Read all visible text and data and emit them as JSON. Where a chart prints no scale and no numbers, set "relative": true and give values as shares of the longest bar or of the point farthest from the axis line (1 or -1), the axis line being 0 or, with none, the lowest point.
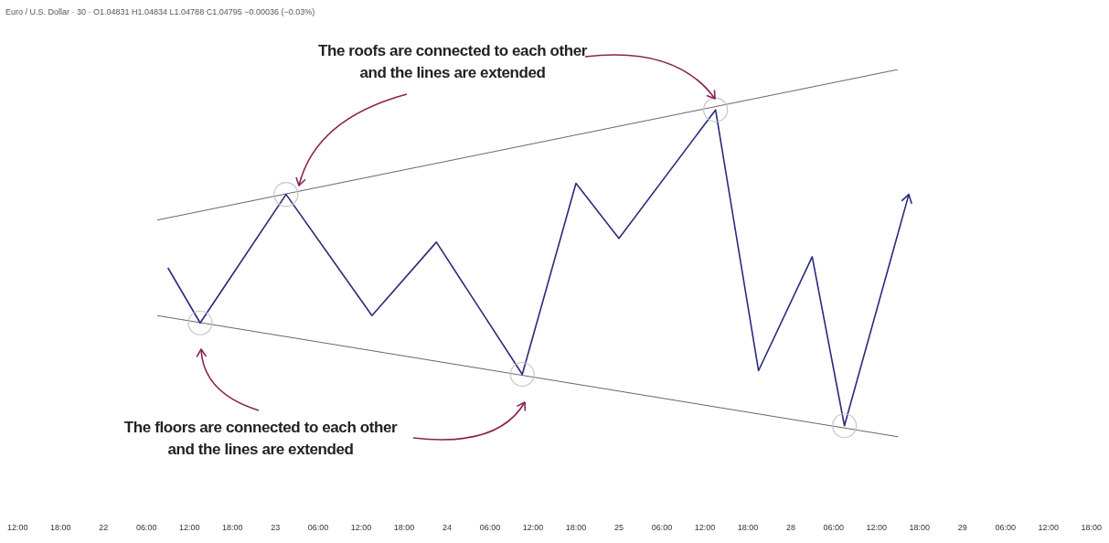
{
  "chart_data": {
    "type": "line",
    "title": "Euro / U.S. Dollar · 30 · O1.04831 H1.04834 L1.04788 C1.04795 −0.00036 (−0.03%)",
    "relative": true,
    "grid": false,
    "legend": false,
    "marker": "none",
    "categories": [
      "12:00",
      null,
      null,
      null,
      "18:00",
      null,
      null,
      null,
      "22",
      null,
      null,
      null,
      "06:00",
      null,
      null,
      null,
      "12:00",
      null,
      null,
      null,
      "18:00",
      null,
      null,
      null,
      "23",
      null,
      null,
      null,
      "06:00",
      null,
      null,
      null,
      "12:00",
      null,
      null,
      null,
      "18:00",
      null,
      null,
      null,
      "24",
      null,
      null,
      null,
      "06:00",
      null,
      null,
      null,
      "12:00",
      null,
      null,
      null,
      "18:00",
      null,
      null,
      null,
      "25",
      null,
      null,
      null,
      "06:00",
      null,
      null,
      null,
      "12:00",
      null,
      null,
      null,
      "18:00",
      null,
      null,
      null,
      "28",
      null,
      null,
      null,
      "06:00",
      null,
      null,
      null,
      "12:00",
      null,
      null,
      null,
      "18:00",
      null,
      null,
      null,
      "29",
      null,
      null,
      null,
      "06:00",
      null,
      null,
      null,
      "12:00",
      null,
      null,
      null,
      "18:00"
    ],
    "series": [
      {
        "color": "#2b2a7a",
        "values": [
          null,
          null,
          null,
          null,
          null,
          null,
          null,
          null,
          null,
          null,
          null,
          null,
          null,
          null,
          0.46,
          null,
          null,
          0.31,
          null,
          null,
          null,
          null,
          null,
          null,
          null,
          0.66,
          null,
          null,
          null,
          null,
          null,
          null,
          null,
          0.33,
          null,
          null,
          null,
          null,
          null,
          0.53,
          null,
          null,
          null,
          null,
          null,
          null,
          null,
          0.17,
          null,
          null,
          null,
          null,
          0.69,
          null,
          null,
          null,
          0.54,
          null,
          null,
          null,
          null,
          null,
          null,
          null,
          null,
          0.89,
          null,
          null,
          null,
          0.18,
          null,
          null,
          null,
          null,
          0.49,
          null,
          null,
          0.03,
          null,
          null,
          null,
          null,
          null,
          0.66,
          null,
          null,
          null,
          null,
          null,
          null,
          null,
          null,
          null,
          null,
          null,
          null,
          null,
          null,
          null,
          null,
          null
        ]
      },
      {
        "color": "#666666",
        "values": [
          null,
          null,
          null,
          null,
          null,
          null,
          null,
          null,
          null,
          null,
          null,
          null,
          null,
          0.59,
          null,
          null,
          null,
          null,
          null,
          null,
          null,
          null,
          null,
          null,
          null,
          null,
          null,
          null,
          null,
          null,
          null,
          null,
          null,
          null,
          null,
          null,
          null,
          null,
          null,
          null,
          null,
          null,
          null,
          null,
          null,
          null,
          null,
          null,
          null,
          null,
          null,
          null,
          null,
          null,
          null,
          null,
          null,
          null,
          null,
          null,
          null,
          null,
          null,
          null,
          null,
          null,
          null,
          null,
          null,
          null,
          null,
          null,
          null,
          null,
          null,
          null,
          null,
          null,
          null,
          null,
          null,
          null,
          1,
          null,
          null,
          null,
          null,
          null,
          null,
          null,
          null,
          null,
          null,
          null,
          null,
          null,
          null,
          null,
          null,
          null,
          null
        ]
      },
      {
        "color": "#666666",
        "values": [
          null,
          null,
          null,
          null,
          null,
          null,
          null,
          null,
          null,
          null,
          null,
          null,
          null,
          0.33,
          null,
          null,
          null,
          null,
          null,
          null,
          null,
          null,
          null,
          null,
          null,
          null,
          null,
          null,
          null,
          null,
          null,
          null,
          null,
          null,
          null,
          null,
          null,
          null,
          null,
          null,
          null,
          null,
          null,
          null,
          null,
          null,
          null,
          null,
          null,
          null,
          null,
          null,
          null,
          null,
          null,
          null,
          null,
          null,
          null,
          null,
          null,
          null,
          null,
          null,
          null,
          null,
          null,
          null,
          null,
          null,
          null,
          null,
          null,
          null,
          null,
          null,
          null,
          null,
          null,
          null,
          null,
          null,
          0,
          null,
          null,
          null,
          null,
          null,
          null,
          null,
          null,
          null,
          null,
          null,
          null,
          null,
          null,
          null,
          null,
          null,
          null
        ]
      }
    ],
    "annotations": [
      "The roofs are connected to each other and the lines are extended",
      "The floors are connected to each other and the lines are extended"
    ]
  }
}
